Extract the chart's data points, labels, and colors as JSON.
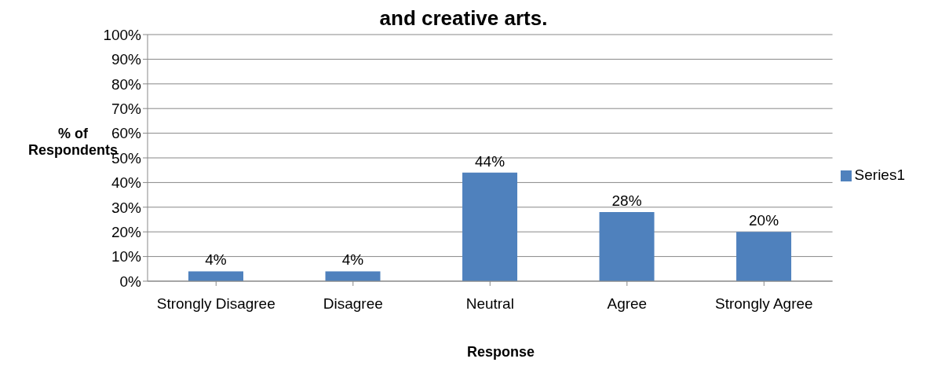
{
  "chart_data": {
    "type": "bar",
    "title": "and creative arts.",
    "xlabel": "Response",
    "ylabel": "% of Respondents",
    "categories": [
      "Strongly Disagree",
      "Disagree",
      "Neutral",
      "Agree",
      "Strongly Agree"
    ],
    "series": [
      {
        "name": "Series1",
        "color": "#4f81bd",
        "values": [
          4,
          4,
          44,
          28,
          20
        ],
        "value_labels": [
          "4%",
          "4%",
          "44%",
          "28%",
          "20%"
        ]
      }
    ],
    "ylim": [
      0,
      100
    ],
    "yticks": [
      {
        "value": 0,
        "label": "0%"
      },
      {
        "value": 10,
        "label": "10%"
      },
      {
        "value": 20,
        "label": "20%"
      },
      {
        "value": 30,
        "label": "30%"
      },
      {
        "value": 40,
        "label": "40%"
      },
      {
        "value": 50,
        "label": "50%"
      },
      {
        "value": 60,
        "label": "60%"
      },
      {
        "value": 70,
        "label": "70%"
      },
      {
        "value": 80,
        "label": "80%"
      },
      {
        "value": 90,
        "label": "90%"
      },
      {
        "value": 100,
        "label": "100%"
      }
    ],
    "grid": "y",
    "legend": "right"
  }
}
